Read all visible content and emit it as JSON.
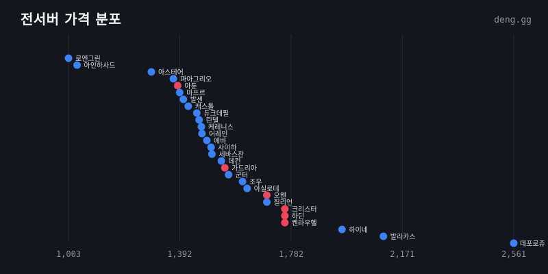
{
  "header": {
    "title": "전서버 가격 분포",
    "brand": "deng.gg"
  },
  "chart_data": {
    "type": "scatter",
    "title": "전서버 가격 분포",
    "xlabel": "",
    "ylabel": "",
    "xlim": [
      1003,
      2561
    ],
    "x_ticks": [
      "1,003",
      "1,392",
      "1,782",
      "2,171",
      "2,561"
    ],
    "x_tick_values": [
      1003,
      1392,
      1782,
      2171,
      2561
    ],
    "grid": "vertical",
    "colors": {
      "default": "#3b82f6",
      "highlight": "#f0455a"
    },
    "points": [
      {
        "label": "로엔그린",
        "x": 1003,
        "highlight": false
      },
      {
        "label": "아인하사드",
        "x": 1033,
        "highlight": false
      },
      {
        "label": "아스테어",
        "x": 1293,
        "highlight": false
      },
      {
        "label": "파아그리오",
        "x": 1370,
        "highlight": false
      },
      {
        "label": "아툰",
        "x": 1385,
        "highlight": true
      },
      {
        "label": "마프르",
        "x": 1392,
        "highlight": false
      },
      {
        "label": "발센",
        "x": 1405,
        "highlight": false
      },
      {
        "label": "캐스톨",
        "x": 1422,
        "highlight": false
      },
      {
        "label": "듀크데필",
        "x": 1452,
        "highlight": false
      },
      {
        "label": "린델",
        "x": 1460,
        "highlight": false
      },
      {
        "label": "케레니스",
        "x": 1468,
        "highlight": false
      },
      {
        "label": "어레인",
        "x": 1470,
        "highlight": false
      },
      {
        "label": "에바",
        "x": 1487,
        "highlight": false
      },
      {
        "label": "사이하",
        "x": 1502,
        "highlight": false
      },
      {
        "label": "세바스찬",
        "x": 1505,
        "highlight": false
      },
      {
        "label": "데컨",
        "x": 1538,
        "highlight": false
      },
      {
        "label": "가드리아",
        "x": 1550,
        "highlight": true
      },
      {
        "label": "군터",
        "x": 1563,
        "highlight": false
      },
      {
        "label": "조우",
        "x": 1612,
        "highlight": false
      },
      {
        "label": "아실로테",
        "x": 1628,
        "highlight": false
      },
      {
        "label": "오웬",
        "x": 1697,
        "highlight": true
      },
      {
        "label": "질리언",
        "x": 1697,
        "highlight": false
      },
      {
        "label": "크리스터",
        "x": 1760,
        "highlight": true
      },
      {
        "label": "하딘",
        "x": 1760,
        "highlight": true
      },
      {
        "label": "켄라우헬",
        "x": 1760,
        "highlight": true
      },
      {
        "label": "하이네",
        "x": 1960,
        "highlight": false
      },
      {
        "label": "발라카스",
        "x": 2105,
        "highlight": false
      },
      {
        "label": "데포로쥬",
        "x": 2561,
        "highlight": false
      }
    ]
  }
}
